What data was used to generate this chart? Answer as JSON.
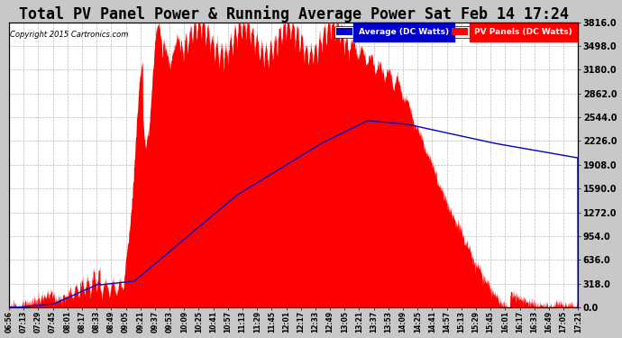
{
  "title": "Total PV Panel Power & Running Average Power Sat Feb 14 17:24",
  "copyright": "Copyright 2015 Cartronics.com",
  "legend_avg": "Average (DC Watts)",
  "legend_pv": "PV Panels (DC Watts)",
  "yticks": [
    0.0,
    318.0,
    636.0,
    954.0,
    1272.0,
    1590.0,
    1908.0,
    2226.0,
    2544.0,
    2862.0,
    3180.0,
    3498.0,
    3816.0
  ],
  "ymax": 3816.0,
  "ymin": 0.0,
  "fig_bg": "#c8c8c8",
  "plot_bg": "#ffffff",
  "grid_color": "#aaaaaa",
  "pv_color": "#ff0000",
  "avg_color": "#0000cc",
  "title_fontsize": 12,
  "time_labels": [
    "06:56",
    "07:13",
    "07:29",
    "07:45",
    "08:01",
    "08:17",
    "08:33",
    "08:49",
    "09:05",
    "09:21",
    "09:37",
    "09:53",
    "10:09",
    "10:25",
    "10:41",
    "10:57",
    "11:13",
    "11:29",
    "11:45",
    "12:01",
    "12:17",
    "12:33",
    "12:49",
    "13:05",
    "13:21",
    "13:37",
    "13:53",
    "14:09",
    "14:25",
    "14:41",
    "14:57",
    "15:13",
    "15:29",
    "15:45",
    "16:01",
    "16:17",
    "16:33",
    "16:49",
    "17:05",
    "17:21"
  ]
}
